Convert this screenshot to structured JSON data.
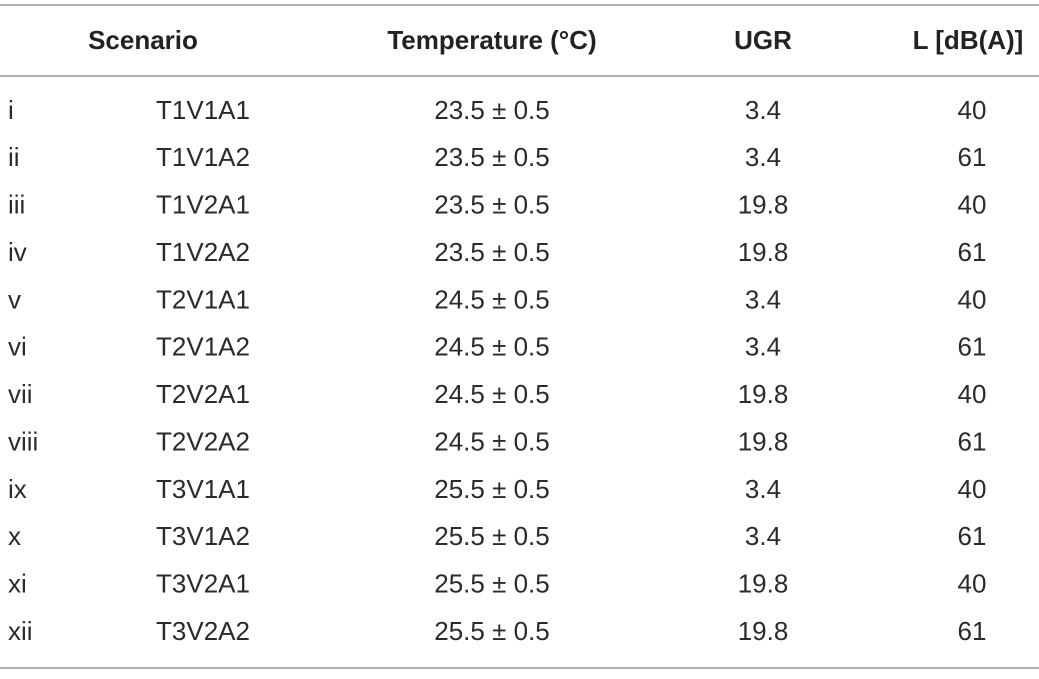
{
  "table": {
    "header": [
      "Scenario",
      "Temperature (°C)",
      "UGR",
      "L [dB(A)]"
    ],
    "rows": [
      [
        "i",
        "T1V1A1",
        "23.5 ± 0.5",
        3.4,
        40
      ],
      [
        "ii",
        "T1V1A2",
        "23.5 ± 0.5",
        3.4,
        61
      ],
      [
        "iii",
        "T1V2A1",
        "23.5 ± 0.5",
        19.8,
        40
      ],
      [
        "iv",
        "T1V2A2",
        "23.5 ± 0.5",
        19.8,
        61
      ],
      [
        "v",
        "T2V1A1",
        "24.5 ± 0.5",
        3.4,
        40
      ],
      [
        "vi",
        "T2V1A2",
        "24.5 ± 0.5",
        3.4,
        61
      ],
      [
        "vii",
        "T2V2A1",
        "24.5 ± 0.5",
        19.8,
        40
      ],
      [
        "viii",
        "T2V2A2",
        "24.5 ± 0.5",
        19.8,
        61
      ],
      [
        "ix",
        "T3V1A1",
        "25.5 ± 0.5",
        3.4,
        40
      ],
      [
        "x",
        "T3V1A2",
        "25.5 ± 0.5",
        3.4,
        61
      ],
      [
        "xi",
        "T3V2A1",
        "25.5 ± 0.5",
        19.8,
        40
      ],
      [
        "xii",
        "T3V2A2",
        "25.5 ± 0.5",
        19.8,
        61
      ]
    ]
  }
}
